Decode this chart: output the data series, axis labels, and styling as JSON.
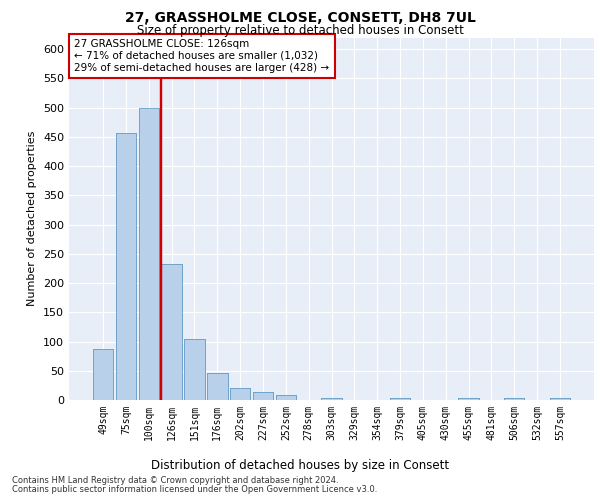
{
  "title_line1": "27, GRASSHOLME CLOSE, CONSETT, DH8 7UL",
  "title_line2": "Size of property relative to detached houses in Consett",
  "xlabel": "Distribution of detached houses by size in Consett",
  "ylabel": "Number of detached properties",
  "footer_line1": "Contains HM Land Registry data © Crown copyright and database right 2024.",
  "footer_line2": "Contains public sector information licensed under the Open Government Licence v3.0.",
  "bar_labels": [
    "49sqm",
    "75sqm",
    "100sqm",
    "126sqm",
    "151sqm",
    "176sqm",
    "202sqm",
    "227sqm",
    "252sqm",
    "278sqm",
    "303sqm",
    "329sqm",
    "354sqm",
    "379sqm",
    "405sqm",
    "430sqm",
    "455sqm",
    "481sqm",
    "506sqm",
    "532sqm",
    "557sqm"
  ],
  "bar_values": [
    88,
    457,
    500,
    233,
    104,
    47,
    20,
    14,
    8,
    0,
    4,
    0,
    0,
    3,
    0,
    0,
    4,
    0,
    4,
    0,
    4
  ],
  "bar_color": "#b8d0ea",
  "bar_edge_color": "#6a9fc8",
  "property_label": "27 GRASSHOLME CLOSE: 126sqm",
  "annotation_line1": "← 71% of detached houses are smaller (1,032)",
  "annotation_line2": "29% of semi-detached houses are larger (428) →",
  "vline_color": "#cc0000",
  "vline_index": 3,
  "ylim": [
    0,
    620
  ],
  "yticks": [
    0,
    50,
    100,
    150,
    200,
    250,
    300,
    350,
    400,
    450,
    500,
    550,
    600
  ],
  "background_color": "#e8eef7",
  "grid_color": "#ffffff",
  "annotation_box_color": "#ffffff",
  "annotation_box_edge": "#cc0000"
}
